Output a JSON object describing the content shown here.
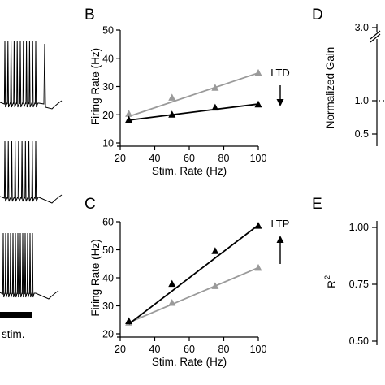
{
  "panel_labels": {
    "b": "B",
    "c": "C",
    "d": "D",
    "e": "E"
  },
  "traces": {
    "stim_label": "stim.",
    "spike_counts": [
      11,
      10,
      13
    ]
  },
  "chart_data": [
    {
      "panel": "B",
      "type": "line",
      "xlabel": "Stim. Rate (Hz)",
      "ylabel": "Firing Rate (Hz)",
      "xlim": [
        20,
        100
      ],
      "ylim": [
        10,
        50
      ],
      "xticks": [
        20,
        40,
        60,
        80,
        100
      ],
      "yticks": [
        10,
        20,
        30,
        40,
        50
      ],
      "grid": false,
      "annotation": "LTD",
      "arrow": "down",
      "series": [
        {
          "color": "#9a9a9a",
          "x": [
            25,
            50,
            75,
            100
          ],
          "y": [
            20.3,
            26,
            29.5,
            34.8
          ],
          "fit": [
            [
              25,
              19.4
            ],
            [
              100,
              34.8
            ]
          ]
        },
        {
          "color": "#000000",
          "x": [
            25,
            50,
            75,
            100
          ],
          "y": [
            18.2,
            20,
            22.5,
            23.6
          ],
          "fit": [
            [
              25,
              18.1
            ],
            [
              100,
              23.8
            ]
          ]
        }
      ]
    },
    {
      "panel": "C",
      "type": "line",
      "xlabel": "Stim. Rate (Hz)",
      "ylabel": "Firing Rate (Hz)",
      "xlim": [
        20,
        100
      ],
      "ylim": [
        20,
        60
      ],
      "xticks": [
        20,
        40,
        60,
        80,
        100
      ],
      "yticks": [
        20,
        30,
        40,
        50,
        60
      ],
      "grid": false,
      "annotation": "LTP",
      "arrow": "up",
      "series": [
        {
          "color": "#9a9a9a",
          "x": [
            25,
            50,
            75,
            100
          ],
          "y": [
            24,
            31,
            37,
            43.5
          ],
          "fit": [
            [
              25,
              24
            ],
            [
              100,
              43.6
            ]
          ]
        },
        {
          "color": "#000000",
          "x": [
            25,
            50,
            75,
            100
          ],
          "y": [
            24.5,
            37.8,
            49.5,
            58.5
          ],
          "fit": [
            [
              25,
              23.5
            ],
            [
              100,
              58.8
            ]
          ]
        }
      ]
    },
    {
      "panel": "D",
      "type": "line",
      "ylabel": "Normalized Gain",
      "yticks": [
        "3.0",
        "1.0",
        "0.5"
      ],
      "reference_line": 1.0,
      "axis_break": true
    },
    {
      "panel": "E",
      "type": "line",
      "ylabel": "R",
      "ylabel_sup": "2",
      "ylim": [
        0.5,
        1.0
      ],
      "yticks": [
        "1.00",
        "0.75",
        "0.50"
      ]
    }
  ]
}
